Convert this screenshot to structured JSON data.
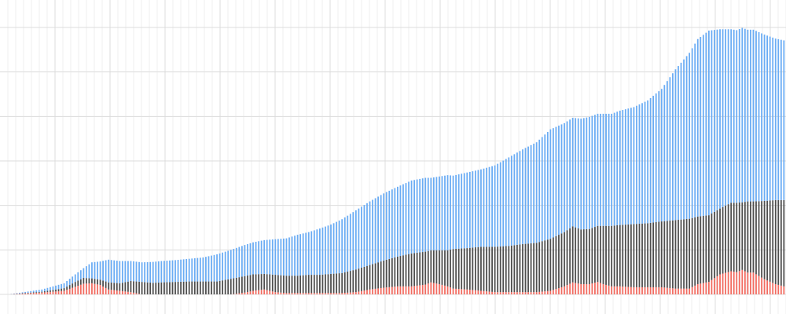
{
  "chart_data": {
    "type": "bar",
    "stacked": true,
    "title": "",
    "xlabel": "",
    "ylabel": "",
    "grid": true,
    "legend": "none",
    "bar_count": 280,
    "ylim": [
      0,
      60
    ],
    "series": [
      {
        "color": "#f26b60",
        "x": [
          0,
          12,
          20,
          24,
          27,
          30,
          33,
          36,
          40,
          44,
          48,
          52,
          55,
          60,
          65,
          70,
          75,
          80,
          85,
          88,
          92,
          96,
          100,
          104,
          108,
          112,
          116,
          120,
          125,
          130,
          135,
          140,
          145,
          150,
          152,
          155,
          158,
          160,
          165,
          170,
          175,
          180,
          185,
          190,
          195,
          200,
          203,
          206,
          209,
          212,
          214,
          217,
          220,
          225,
          230,
          235,
          240,
          245,
          248,
          252,
          256,
          260,
          262,
          264,
          266,
          268,
          272,
          276,
          279
        ],
        "values": [
          0.0,
          0.4,
          0.8,
          1.7,
          2.4,
          2.5,
          2.1,
          1.1,
          0.8,
          0.5,
          0.0,
          0.0,
          0.0,
          0.0,
          0.0,
          0.0,
          0.0,
          0.0,
          0.4,
          0.8,
          1.1,
          0.5,
          0.3,
          0.3,
          0.3,
          0.3,
          0.3,
          0.3,
          0.5,
          1.1,
          1.5,
          1.8,
          1.8,
          2.2,
          2.7,
          2.3,
          1.8,
          1.3,
          1.1,
          0.8,
          0.5,
          0.5,
          0.5,
          0.5,
          0.8,
          1.8,
          2.7,
          2.3,
          2.3,
          2.8,
          2.3,
          1.8,
          1.8,
          1.6,
          1.6,
          1.6,
          1.3,
          1.3,
          2.3,
          2.8,
          4.5,
          5.2,
          5.0,
          5.5,
          4.9,
          4.9,
          3.4,
          2.3,
          1.8
        ]
      },
      {
        "color": "#4d4d4d",
        "x": [
          0,
          12,
          20,
          24,
          27,
          30,
          33,
          36,
          40,
          44,
          48,
          52,
          55,
          60,
          65,
          70,
          75,
          80,
          85,
          88,
          92,
          96,
          100,
          104,
          108,
          112,
          116,
          120,
          125,
          130,
          135,
          140,
          145,
          150,
          152,
          155,
          158,
          160,
          165,
          170,
          175,
          180,
          185,
          190,
          195,
          200,
          203,
          206,
          209,
          212,
          214,
          217,
          220,
          225,
          230,
          235,
          240,
          245,
          248,
          252,
          256,
          260,
          262,
          264,
          266,
          268,
          272,
          276,
          279
        ],
        "values": [
          0.0,
          0.2,
          0.6,
          1.1,
          1.3,
          1.1,
          1.2,
          1.6,
          1.7,
          2.5,
          2.8,
          2.6,
          2.7,
          2.8,
          2.9,
          2.9,
          2.9,
          3.5,
          3.7,
          3.7,
          3.5,
          3.9,
          3.9,
          3.9,
          4.1,
          4.1,
          4.3,
          4.5,
          5.1,
          5.5,
          6.1,
          6.7,
          7.4,
          7.4,
          7.2,
          7.6,
          8.1,
          8.9,
          9.3,
          9.9,
          10.2,
          10.4,
          10.8,
          11.1,
          11.7,
          12.2,
          12.6,
          12.3,
          12.4,
          12.6,
          13.1,
          13.6,
          13.8,
          14.2,
          14.4,
          14.8,
          15.4,
          15.7,
          15.2,
          15.0,
          14.8,
          15.4,
          15.6,
          15.2,
          16.0,
          16.0,
          17.6,
          18.9,
          19.4
        ]
      },
      {
        "color": "#6aacf4",
        "x": [
          0,
          12,
          20,
          24,
          27,
          30,
          33,
          36,
          40,
          44,
          48,
          52,
          55,
          60,
          65,
          70,
          75,
          80,
          85,
          88,
          92,
          96,
          100,
          104,
          108,
          112,
          116,
          120,
          125,
          130,
          135,
          140,
          145,
          150,
          152,
          155,
          158,
          160,
          165,
          170,
          175,
          180,
          185,
          190,
          195,
          200,
          203,
          206,
          209,
          212,
          214,
          217,
          220,
          225,
          230,
          235,
          240,
          245,
          248,
          252,
          256,
          260,
          262,
          264,
          266,
          268,
          272,
          276,
          279
        ],
        "values": [
          0.0,
          0.5,
          1.1,
          1.7,
          2.2,
          3.6,
          4.1,
          5.1,
          5.0,
          4.5,
          4.4,
          4.7,
          4.8,
          4.9,
          5.1,
          5.4,
          6.1,
          6.5,
          7.0,
          7.2,
          7.6,
          8.0,
          8.4,
          9.2,
          9.6,
          10.4,
          11.1,
          12.1,
          13.3,
          14.3,
          15.1,
          15.7,
          16.4,
          16.6,
          16.3,
          16.6,
          16.9,
          16.5,
          17.0,
          17.4,
          18.3,
          19.9,
          21.3,
          22.6,
          24.6,
          24.5,
          24.4,
          24.9,
          25.2,
          25.2,
          25.2,
          25.2,
          25.7,
          26.3,
          27.6,
          29.8,
          33.9,
          37.3,
          39.9,
          41.5,
          40.3,
          39.0,
          38.8,
          39.2,
          38.6,
          38.6,
          37.4,
          36.3,
          35.9
        ]
      }
    ]
  }
}
